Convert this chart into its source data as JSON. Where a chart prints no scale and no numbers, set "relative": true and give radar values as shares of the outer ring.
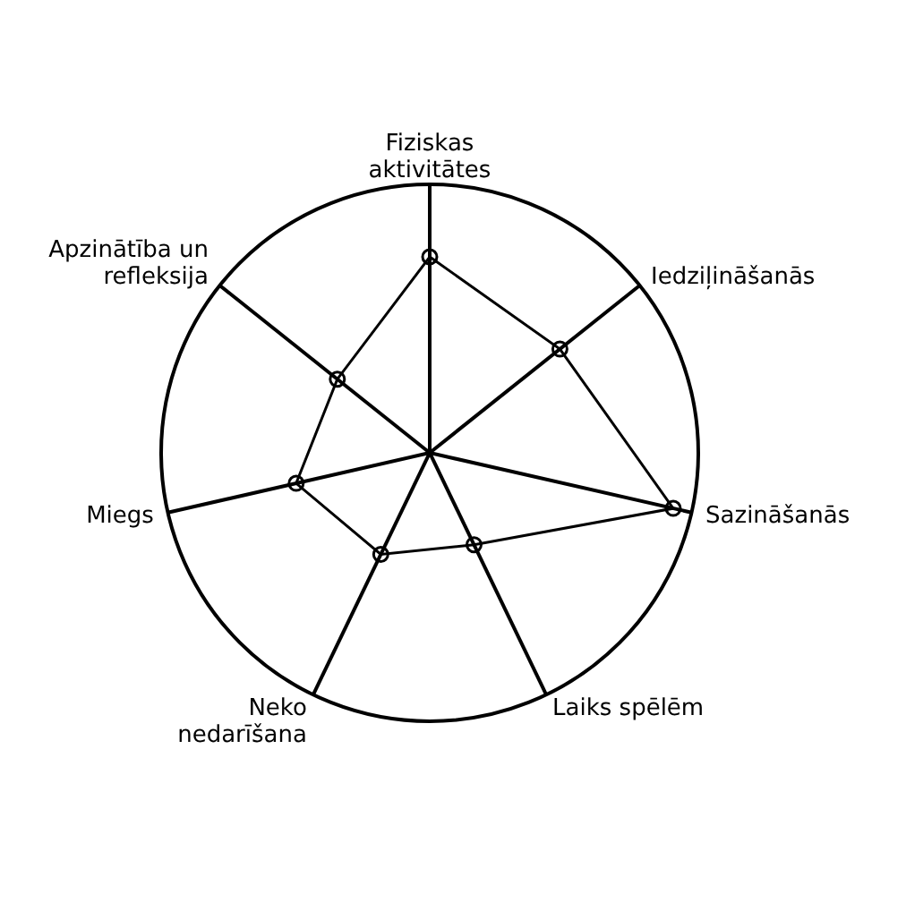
{
  "chart_data": {
    "type": "radar",
    "relative": true,
    "categories": [
      "Fiziskas aktivitātes",
      "Iedziļināšanās",
      "Sazināšanās",
      "Laiks spēlēm",
      "Neko nedarīšana",
      "Miegs",
      "Apzinātība un refleksija"
    ],
    "series": [
      {
        "color": "#000000",
        "values": [
          0.73,
          0.62,
          0.93,
          0.38,
          0.42,
          0.51,
          0.44
        ]
      }
    ],
    "marker": "circle",
    "grid": true,
    "legend": false
  }
}
